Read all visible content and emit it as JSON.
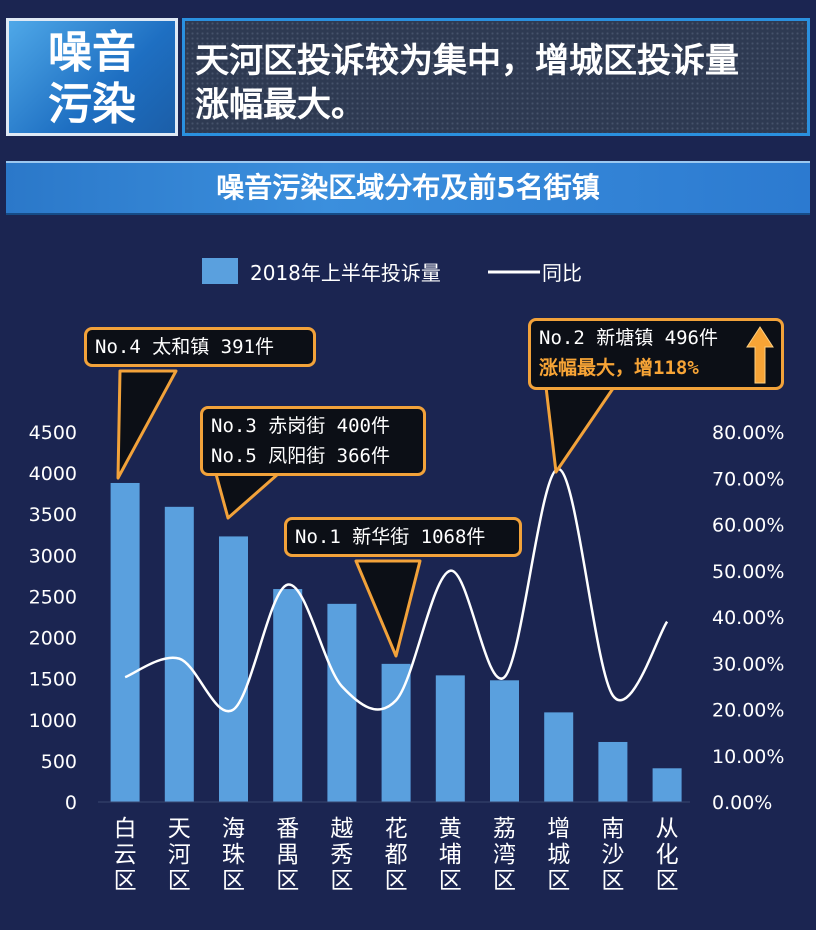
{
  "header": {
    "tag_line1": "噪音",
    "tag_line2": "污染",
    "headline_line1": "天河区投诉较为集中，增城区投诉量",
    "headline_line2": "涨幅最大。"
  },
  "chart_data": {
    "type": "bar",
    "title": "噪音污染区域分布及前5名街镇",
    "categories": [
      "白云区",
      "天河区",
      "海珠区",
      "番禺区",
      "越秀区",
      "花都区",
      "黄埔区",
      "荔湾区",
      "增城区",
      "南沙区",
      "从化区"
    ],
    "series": [
      {
        "name": "2018年上半年投诉量",
        "type": "bar",
        "axis": "left",
        "values": [
          3880,
          3590,
          3230,
          2590,
          2410,
          1680,
          1540,
          1480,
          1090,
          730,
          410
        ]
      },
      {
        "name": "同比",
        "type": "line",
        "axis": "right",
        "values": [
          0.27,
          0.31,
          0.2,
          0.47,
          0.25,
          0.22,
          0.5,
          0.27,
          0.72,
          0.23,
          0.39
        ]
      }
    ],
    "y_left": {
      "ylim": [
        0,
        4500
      ],
      "ticks": [
        "0",
        "500",
        "1000",
        "1500",
        "2000",
        "2500",
        "3000",
        "3500",
        "4000",
        "4500"
      ]
    },
    "y_right": {
      "ylim": [
        0,
        0.8
      ],
      "ticks": [
        "0.00%",
        "10.00%",
        "20.00%",
        "30.00%",
        "40.00%",
        "50.00%",
        "60.00%",
        "70.00%",
        "80.00%"
      ]
    },
    "legend_placement": "top",
    "colors": {
      "bar": "#5aa0de",
      "line": "#ffffff",
      "callout_border": "#f2a23a",
      "highlight": "#f7a436"
    },
    "annotations": [
      {
        "lines": [
          "No.4 太和镇 391件"
        ],
        "target": "白云区"
      },
      {
        "lines": [
          "No.3 赤岗街 400件",
          "No.5 凤阳街 366件"
        ],
        "target": "海珠区"
      },
      {
        "lines": [
          "No.1 新华街 1068件"
        ],
        "target": "花都区"
      },
      {
        "lines": [
          "No.2 新塘镇 496件",
          "涨幅最大，增118%"
        ],
        "target": "增城区",
        "arrow": "up-arrow-icon"
      }
    ]
  }
}
